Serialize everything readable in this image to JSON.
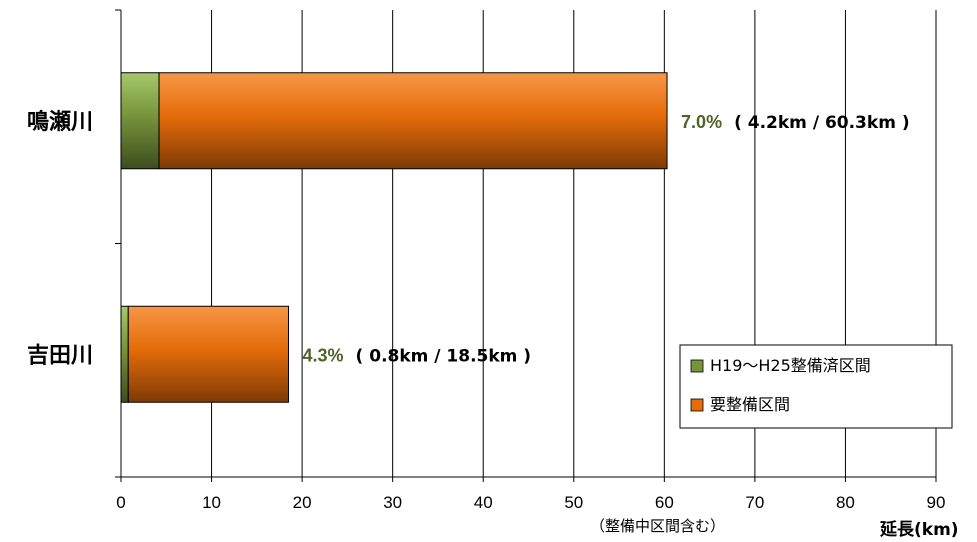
{
  "chart_data": {
    "type": "bar",
    "orientation": "horizontal",
    "stacked": true,
    "categories": [
      "鳴瀬川",
      "吉田川"
    ],
    "series": [
      {
        "name": "H19〜H25整備済区間",
        "values": [
          4.2,
          0.8
        ],
        "color": "#77933c"
      },
      {
        "name": "要整備区間",
        "values": [
          56.1,
          17.7
        ],
        "color": "#e46c0a"
      }
    ],
    "totals": [
      60.3,
      18.5
    ],
    "annotations": [
      {
        "pct": "7.0%",
        "detail": "( 4.2km / 60.3km )"
      },
      {
        "pct": "4.3%",
        "detail": "( 0.8km / 18.5km )"
      }
    ],
    "xlim": [
      0,
      90
    ],
    "xticks": [
      "0",
      "10",
      "20",
      "30",
      "40",
      "50",
      "60",
      "70",
      "80",
      "90"
    ],
    "xlabel": "延長(km)",
    "x_note": "（整備中区間含む）",
    "grid": "vertical",
    "legend_position": "lower-right"
  }
}
